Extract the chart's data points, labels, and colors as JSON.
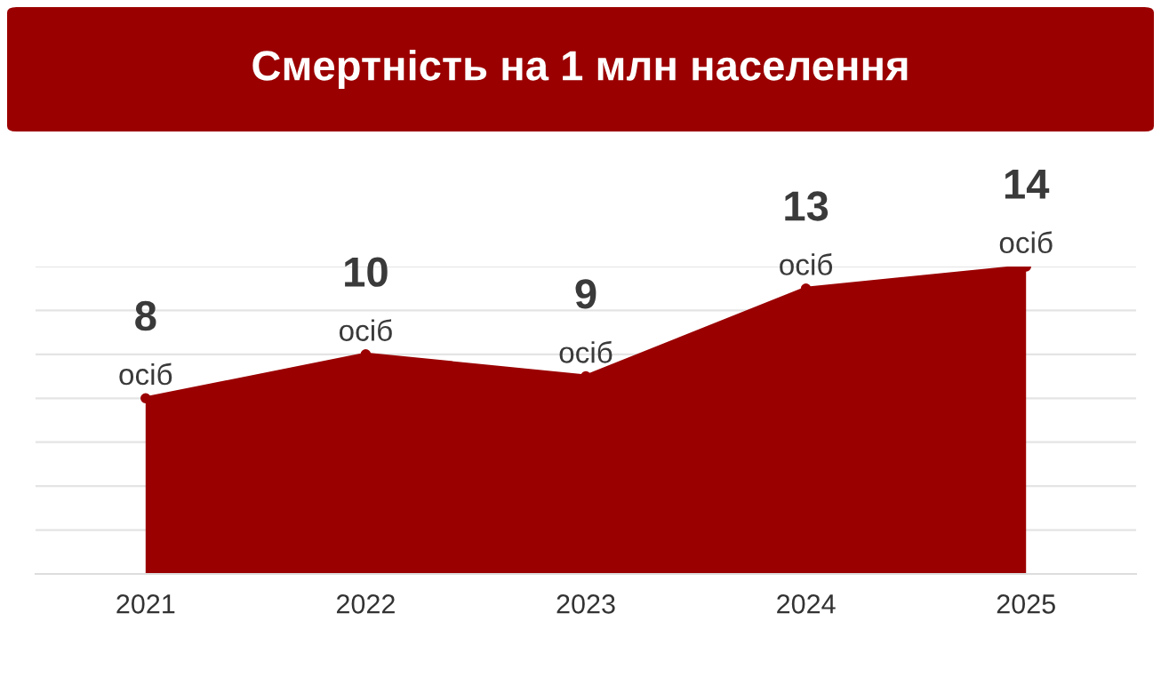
{
  "chart_data": {
    "type": "area",
    "title": "Смертність на 1 млн населення",
    "categories": [
      "2021",
      "2022",
      "2023",
      "2024",
      "2025"
    ],
    "series": [
      {
        "color": "#9b0000",
        "values": [
          8,
          10,
          9,
          13,
          14
        ],
        "value_labels": [
          "8\nосіб",
          "10\nосіб",
          "9\nосіб",
          "13\nосіб",
          "14\nосіб"
        ]
      }
    ],
    "ylim": [
      0,
      14
    ],
    "yticks": [
      {
        "value": 0,
        "label": null
      },
      {
        "value": 2,
        "label": null
      },
      {
        "value": 4,
        "label": null
      },
      {
        "value": 6,
        "label": null
      },
      {
        "value": 8,
        "label": null
      },
      {
        "value": 10,
        "label": null
      },
      {
        "value": 12,
        "label": null
      },
      {
        "value": 14,
        "label": null
      }
    ],
    "tick_labels": "x",
    "grid": "y",
    "legend": false
  }
}
